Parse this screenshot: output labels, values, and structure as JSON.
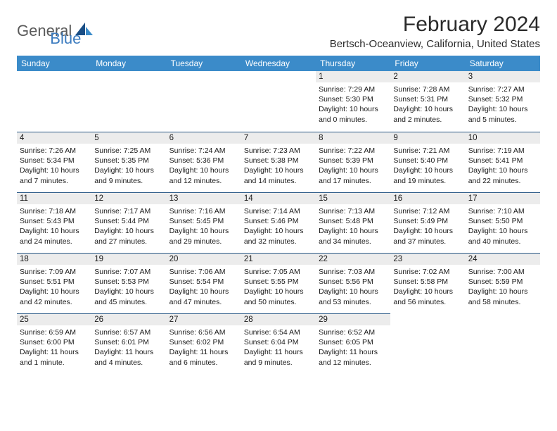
{
  "logo": {
    "part1": "General",
    "part2": "Blue"
  },
  "title": "February 2024",
  "location": "Bertsch-Oceanview, California, United States",
  "colors": {
    "header_bg": "#3b8bc9",
    "header_fg": "#ffffff",
    "daynum_bg": "#ececec",
    "rule": "#2b5a87",
    "logo_blue": "#3b7bbf",
    "logo_gray": "#5a5a5a"
  },
  "weekdays": [
    "Sunday",
    "Monday",
    "Tuesday",
    "Wednesday",
    "Thursday",
    "Friday",
    "Saturday"
  ],
  "weeks": [
    [
      null,
      null,
      null,
      null,
      {
        "n": "1",
        "sr": "7:29 AM",
        "ss": "5:30 PM",
        "dl": "10 hours and 0 minutes."
      },
      {
        "n": "2",
        "sr": "7:28 AM",
        "ss": "5:31 PM",
        "dl": "10 hours and 2 minutes."
      },
      {
        "n": "3",
        "sr": "7:27 AM",
        "ss": "5:32 PM",
        "dl": "10 hours and 5 minutes."
      }
    ],
    [
      {
        "n": "4",
        "sr": "7:26 AM",
        "ss": "5:34 PM",
        "dl": "10 hours and 7 minutes."
      },
      {
        "n": "5",
        "sr": "7:25 AM",
        "ss": "5:35 PM",
        "dl": "10 hours and 9 minutes."
      },
      {
        "n": "6",
        "sr": "7:24 AM",
        "ss": "5:36 PM",
        "dl": "10 hours and 12 minutes."
      },
      {
        "n": "7",
        "sr": "7:23 AM",
        "ss": "5:38 PM",
        "dl": "10 hours and 14 minutes."
      },
      {
        "n": "8",
        "sr": "7:22 AM",
        "ss": "5:39 PM",
        "dl": "10 hours and 17 minutes."
      },
      {
        "n": "9",
        "sr": "7:21 AM",
        "ss": "5:40 PM",
        "dl": "10 hours and 19 minutes."
      },
      {
        "n": "10",
        "sr": "7:19 AM",
        "ss": "5:41 PM",
        "dl": "10 hours and 22 minutes."
      }
    ],
    [
      {
        "n": "11",
        "sr": "7:18 AM",
        "ss": "5:43 PM",
        "dl": "10 hours and 24 minutes."
      },
      {
        "n": "12",
        "sr": "7:17 AM",
        "ss": "5:44 PM",
        "dl": "10 hours and 27 minutes."
      },
      {
        "n": "13",
        "sr": "7:16 AM",
        "ss": "5:45 PM",
        "dl": "10 hours and 29 minutes."
      },
      {
        "n": "14",
        "sr": "7:14 AM",
        "ss": "5:46 PM",
        "dl": "10 hours and 32 minutes."
      },
      {
        "n": "15",
        "sr": "7:13 AM",
        "ss": "5:48 PM",
        "dl": "10 hours and 34 minutes."
      },
      {
        "n": "16",
        "sr": "7:12 AM",
        "ss": "5:49 PM",
        "dl": "10 hours and 37 minutes."
      },
      {
        "n": "17",
        "sr": "7:10 AM",
        "ss": "5:50 PM",
        "dl": "10 hours and 40 minutes."
      }
    ],
    [
      {
        "n": "18",
        "sr": "7:09 AM",
        "ss": "5:51 PM",
        "dl": "10 hours and 42 minutes."
      },
      {
        "n": "19",
        "sr": "7:07 AM",
        "ss": "5:53 PM",
        "dl": "10 hours and 45 minutes."
      },
      {
        "n": "20",
        "sr": "7:06 AM",
        "ss": "5:54 PM",
        "dl": "10 hours and 47 minutes."
      },
      {
        "n": "21",
        "sr": "7:05 AM",
        "ss": "5:55 PM",
        "dl": "10 hours and 50 minutes."
      },
      {
        "n": "22",
        "sr": "7:03 AM",
        "ss": "5:56 PM",
        "dl": "10 hours and 53 minutes."
      },
      {
        "n": "23",
        "sr": "7:02 AM",
        "ss": "5:58 PM",
        "dl": "10 hours and 56 minutes."
      },
      {
        "n": "24",
        "sr": "7:00 AM",
        "ss": "5:59 PM",
        "dl": "10 hours and 58 minutes."
      }
    ],
    [
      {
        "n": "25",
        "sr": "6:59 AM",
        "ss": "6:00 PM",
        "dl": "11 hours and 1 minute."
      },
      {
        "n": "26",
        "sr": "6:57 AM",
        "ss": "6:01 PM",
        "dl": "11 hours and 4 minutes."
      },
      {
        "n": "27",
        "sr": "6:56 AM",
        "ss": "6:02 PM",
        "dl": "11 hours and 6 minutes."
      },
      {
        "n": "28",
        "sr": "6:54 AM",
        "ss": "6:04 PM",
        "dl": "11 hours and 9 minutes."
      },
      {
        "n": "29",
        "sr": "6:52 AM",
        "ss": "6:05 PM",
        "dl": "11 hours and 12 minutes."
      },
      null,
      null
    ]
  ],
  "labels": {
    "sunrise": "Sunrise:",
    "sunset": "Sunset:",
    "daylight": "Daylight:"
  }
}
